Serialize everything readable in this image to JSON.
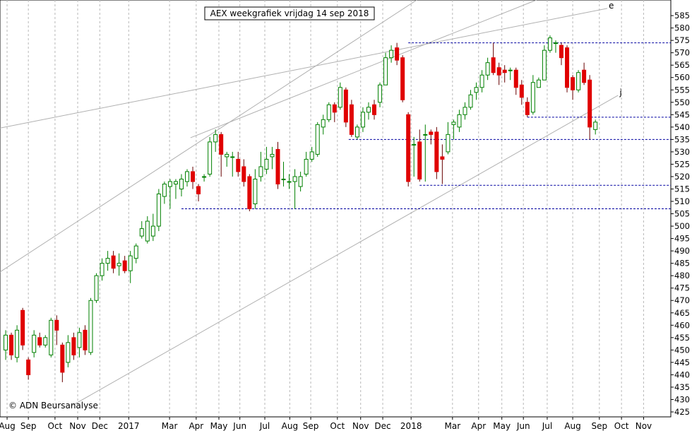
{
  "chart_data": {
    "type": "candlestick",
    "title": "AEX weekgrafiek vrijdag 14 sep 2018",
    "watermark": "© ADN Beursanalyse",
    "up_color": "#008000",
    "down_color": "#e00000",
    "level_color": "#0000a0",
    "trend_color": "#b0b0b0",
    "grid": true,
    "x": [
      0,
      1,
      2,
      3,
      4,
      5,
      6,
      7,
      8,
      9,
      10,
      11,
      12,
      13,
      14,
      15,
      16,
      17,
      18,
      19,
      20,
      21,
      22,
      23,
      24,
      25,
      26,
      27,
      28,
      29,
      30,
      31,
      32,
      33,
      34,
      35,
      36,
      37,
      38,
      39,
      40,
      41,
      42,
      43,
      44,
      45,
      46,
      47,
      48,
      49,
      50,
      51,
      52,
      53,
      54,
      55,
      56,
      57,
      58,
      59,
      60,
      61,
      62,
      63,
      64,
      65,
      66,
      67,
      68,
      69,
      70,
      71,
      72,
      73,
      74,
      75,
      76,
      77,
      78,
      79,
      80,
      81,
      82,
      83,
      84,
      85,
      86,
      87,
      88,
      89,
      90,
      91,
      92,
      93,
      94,
      95,
      96,
      97,
      98,
      99,
      100,
      101,
      102,
      103,
      104
    ],
    "open": [
      450,
      456,
      447,
      466,
      446,
      449,
      455,
      452,
      448,
      462,
      452,
      445,
      455,
      451,
      458,
      449,
      470,
      480,
      485,
      488,
      484,
      486,
      482,
      487,
      496,
      494,
      496,
      500,
      512,
      516,
      517,
      515,
      518,
      522,
      516,
      520,
      521,
      534,
      537,
      528,
      528,
      527,
      524,
      520,
      509,
      520,
      523,
      528,
      531,
      519,
      518,
      518,
      516,
      521,
      527,
      529,
      540,
      543,
      549,
      548,
      555,
      549,
      536,
      540,
      546,
      549,
      550,
      557,
      568,
      572,
      568,
      545,
      533,
      534,
      537,
      538,
      538,
      528,
      530,
      541,
      540,
      545,
      548,
      554,
      556,
      561,
      568,
      564,
      563,
      563,
      563,
      557,
      550,
      546,
      556,
      559,
      571,
      574,
      573,
      572,
      560,
      555,
      563,
      559,
      539
    ],
    "high": [
      458,
      457,
      460,
      467,
      447,
      458,
      457,
      456,
      463,
      464,
      453,
      456,
      457,
      459,
      460,
      471,
      481,
      487,
      490,
      490,
      489,
      488,
      490,
      493,
      502,
      504,
      505,
      515,
      518,
      519,
      519,
      521,
      523,
      524,
      517,
      521,
      536,
      539,
      538,
      530,
      530,
      530,
      527,
      521,
      523,
      530,
      532,
      532,
      534,
      526,
      521,
      523,
      522,
      530,
      532,
      542,
      545,
      550,
      550,
      558,
      556,
      551,
      541,
      548,
      550,
      551,
      558,
      570,
      573,
      574,
      569,
      546,
      536,
      539,
      541,
      539,
      540,
      533,
      542,
      543,
      547,
      550,
      555,
      558,
      563,
      568,
      574,
      566,
      565,
      564,
      564,
      559,
      552,
      561,
      560,
      573,
      577,
      575,
      574,
      573,
      561,
      563,
      566,
      561,
      543
    ],
    "low": [
      446,
      446,
      445,
      450,
      438,
      447,
      451,
      451,
      447,
      452,
      437,
      443,
      446,
      447,
      448,
      448,
      469,
      478,
      482,
      481,
      480,
      481,
      477,
      485,
      495,
      493,
      494,
      498,
      509,
      507,
      511,
      512,
      516,
      515,
      510,
      518,
      520,
      530,
      520,
      524,
      520,
      520,
      516,
      506,
      507,
      518,
      521,
      523,
      515,
      516,
      515,
      507,
      514,
      520,
      526,
      528,
      537,
      542,
      542,
      547,
      540,
      536,
      535,
      538,
      543,
      543,
      548,
      557,
      566,
      565,
      550,
      516,
      520,
      518,
      518,
      533,
      519,
      517,
      529,
      535,
      538,
      543,
      547,
      551,
      554,
      559,
      561,
      557,
      558,
      559,
      553,
      549,
      544,
      545,
      556,
      559,
      570,
      570,
      565,
      554,
      551,
      554,
      557,
      535,
      537
    ],
    "close": [
      456,
      448,
      458,
      452,
      440,
      456,
      452,
      455,
      462,
      458,
      441,
      453,
      448,
      457,
      450,
      470,
      480,
      485,
      487,
      483,
      485,
      482,
      488,
      492,
      499,
      502,
      500,
      513,
      517,
      518,
      518,
      519,
      522,
      518,
      513,
      520,
      534,
      537,
      529,
      529,
      528,
      522,
      518,
      507,
      519,
      524,
      527,
      529,
      517,
      519,
      518,
      520,
      520,
      527,
      530,
      541,
      543,
      549,
      546,
      556,
      542,
      537,
      540,
      546,
      548,
      545,
      557,
      568,
      571,
      567,
      551,
      518,
      533,
      519,
      537,
      537,
      522,
      527,
      537,
      542,
      545,
      548,
      553,
      556,
      561,
      566,
      562,
      561,
      562,
      563,
      556,
      552,
      545,
      558,
      559,
      571,
      576,
      574,
      568,
      556,
      555,
      562,
      558,
      540,
      542
    ],
    "xlim": [
      -1,
      117.3
    ],
    "ylim": [
      423,
      591.3
    ],
    "yticks": [
      425,
      430,
      435,
      440,
      445,
      450,
      455,
      460,
      465,
      470,
      475,
      480,
      485,
      490,
      495,
      500,
      505,
      510,
      515,
      520,
      525,
      530,
      535,
      540,
      545,
      550,
      555,
      560,
      565,
      570,
      575,
      580,
      585
    ],
    "xticks": [
      {
        "value": 0.25,
        "label": "Aug"
      },
      {
        "value": 4,
        "label": "Sep"
      },
      {
        "value": 8.7,
        "label": "Oct"
      },
      {
        "value": 12.7,
        "label": "Nov"
      },
      {
        "value": 16.6,
        "label": "Dec"
      },
      {
        "value": 21.7,
        "label": "2017"
      },
      {
        "value": 28.9,
        "label": "Mar"
      },
      {
        "value": 33.6,
        "label": "Apr"
      },
      {
        "value": 37.6,
        "label": "May"
      },
      {
        "value": 41.3,
        "label": "Jun"
      },
      {
        "value": 45.7,
        "label": "Jul"
      },
      {
        "value": 50.1,
        "label": "Aug"
      },
      {
        "value": 53.8,
        "label": "Sep"
      },
      {
        "value": 58.5,
        "label": "Oct"
      },
      {
        "value": 62.6,
        "label": "Nov"
      },
      {
        "value": 66.5,
        "label": "Dec"
      },
      {
        "value": 71.5,
        "label": "2018"
      },
      {
        "value": 78.8,
        "label": "Mar"
      },
      {
        "value": 83.4,
        "label": "Apr"
      },
      {
        "value": 87.5,
        "label": "May"
      },
      {
        "value": 91.3,
        "label": "Jun"
      },
      {
        "value": 95.5,
        "label": "Jul"
      },
      {
        "value": 100,
        "label": "Aug"
      },
      {
        "value": 104.7,
        "label": "Sep"
      },
      {
        "value": 108.6,
        "label": "Oct"
      },
      {
        "value": 112.5,
        "label": "Nov"
      }
    ],
    "levels": [
      {
        "value": 574,
        "from": 71
      },
      {
        "value": 544,
        "from": 92
      },
      {
        "value": 535,
        "from": 60.5
      },
      {
        "value": 516.5,
        "from": 73
      },
      {
        "value": 507,
        "from": 31
      }
    ],
    "trendlines": [
      {
        "x": [
          -1,
          106.1
        ],
        "y": [
          539.6,
          587.9
        ],
        "label": "e"
      },
      {
        "x": [
          -1,
          72.5
        ],
        "y": [
          481.5,
          591.3
        ]
      },
      {
        "x": [
          32.6,
          93.6
        ],
        "y": [
          535.7,
          591.3
        ]
      },
      {
        "x": [
          11.5,
          108
        ],
        "y": [
          427.3,
          552.8
        ],
        "label": "j"
      }
    ]
  }
}
